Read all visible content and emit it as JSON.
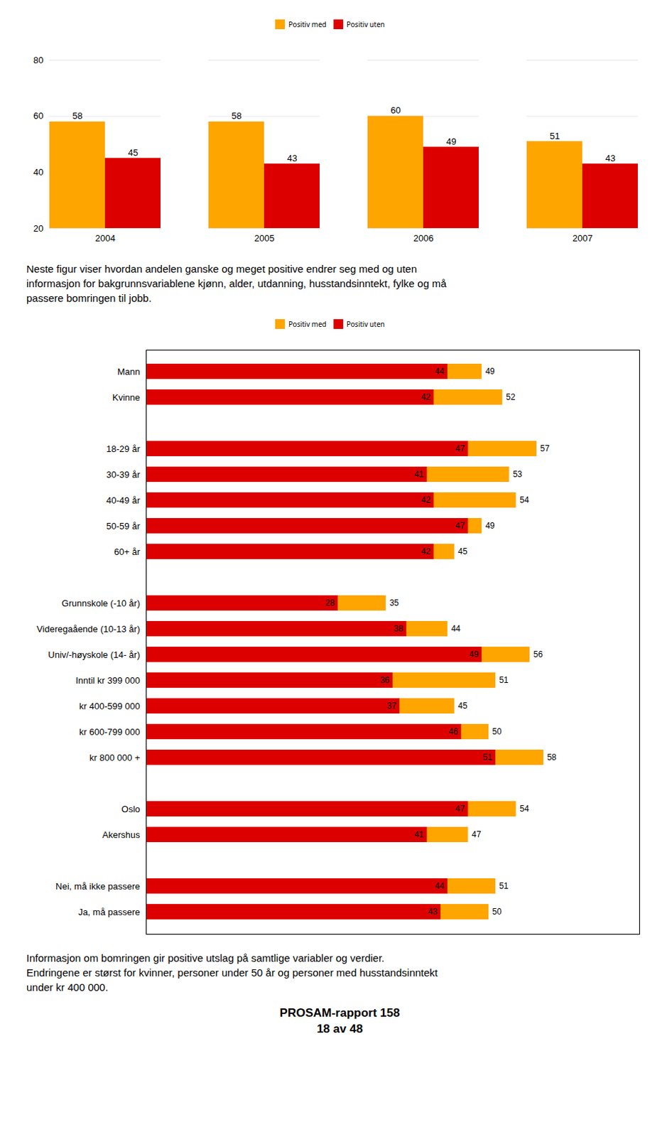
{
  "chart_data": [
    {
      "type": "bar",
      "categories": [
        "2004",
        "2005",
        "2006",
        "2007"
      ],
      "series": [
        {
          "name": "Positiv med",
          "color": "#FFA500",
          "values": [
            58,
            58,
            60,
            51
          ]
        },
        {
          "name": "Positiv uten",
          "color": "#DD0000",
          "values": [
            45,
            43,
            49,
            43
          ]
        }
      ],
      "ylim": [
        20,
        80
      ],
      "yticks": [
        20,
        40,
        60,
        80
      ],
      "grid": true,
      "legend": "top",
      "data_labels": true
    },
    {
      "type": "bar",
      "orientation": "horizontal",
      "subtitle": "Neste figur viser hvordan andelen ganske og meget positive endrer seg med og uten\ninformasjon for bakgrunnsvariablene kjønn, alder, utdanning, husstandsinntekt, fylke og må\npassere bomringen til jobb.",
      "categories": [
        "Mann",
        "Kvinne",
        null,
        "18-29 år",
        "30-39 år",
        "40-49 år",
        "50-59 år",
        "60+ år",
        null,
        "Grunnskole (-10 år)",
        "Videregaående (10-13 år)",
        "Univ/-høyskole (14- år)",
        "Inntil kr 399 000",
        "kr 400-599 000",
        "kr 600-799 000",
        "kr 800 000 +",
        null,
        "Oslo",
        "Akershus",
        null,
        "Nei, må ikke passere",
        "Ja, må passere"
      ],
      "series": [
        {
          "name": "Positiv med",
          "color": "#FFA500",
          "values": [
            49,
            52,
            null,
            57,
            53,
            54,
            49,
            45,
            null,
            35,
            44,
            56,
            51,
            45,
            50,
            58,
            null,
            54,
            47,
            null,
            51,
            50
          ]
        },
        {
          "name": "Positiv uten",
          "color": "#DD0000",
          "values": [
            44,
            42,
            null,
            47,
            41,
            42,
            47,
            42,
            null,
            28,
            38,
            49,
            36,
            37,
            46,
            51,
            null,
            47,
            41,
            null,
            44,
            43
          ]
        }
      ],
      "xlim": [
        0,
        72
      ],
      "tick_labels": "y",
      "grid": false,
      "legend": "top",
      "data_labels": true,
      "annotations": [
        "Informasjon om bomringen gir positive utslag på samtlige variabler og verdier.\nEndringene er størst for kvinner, personer under 50 år og personer med husstandsinntekt\nunder kr 400 000.",
        "PROSAM-rapport 158",
        "18 av 48"
      ]
    }
  ]
}
